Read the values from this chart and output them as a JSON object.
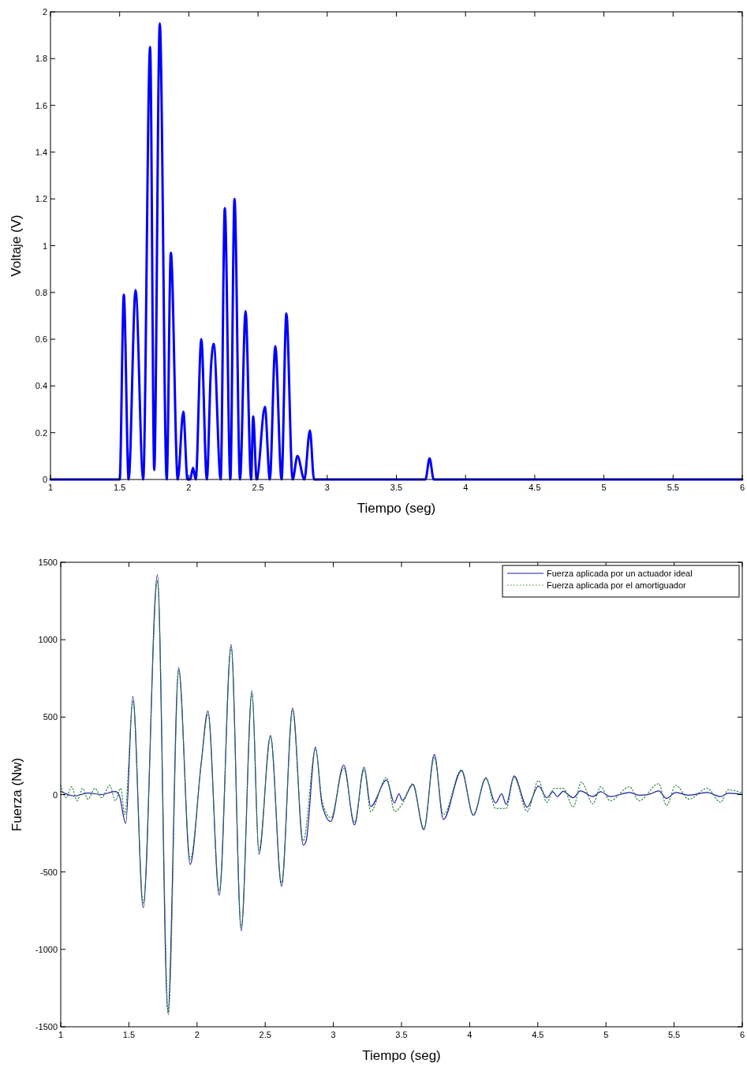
{
  "chart_data": [
    {
      "type": "line",
      "xlabel": "Tiempo (seg)",
      "ylabel": "Voltaje (V)",
      "xlim": [
        1,
        6
      ],
      "xticks": [
        1,
        1.5,
        2,
        2.5,
        3,
        3.5,
        4,
        4.5,
        5,
        5.5,
        6
      ],
      "ylim": [
        0,
        2
      ],
      "yticks": [
        0,
        0.2,
        0.4,
        0.6,
        0.8,
        1,
        1.2,
        1.4,
        1.6,
        1.8,
        2
      ],
      "grid": false,
      "legend": false,
      "line_style": "solid",
      "series": [
        {
          "color": "#0000ff",
          "x": [
            1,
            1.5,
            1.53,
            1.565,
            1.615,
            1.67,
            1.72,
            1.75,
            1.79,
            1.84,
            1.87,
            1.92,
            1.96,
            1.99,
            2.01,
            2.03,
            2.05,
            2.09,
            2.13,
            2.16,
            2.18,
            2.23,
            2.26,
            2.3,
            2.33,
            2.37,
            2.41,
            2.45,
            2.465,
            2.49,
            2.55,
            2.585,
            2.625,
            2.67,
            2.705,
            2.75,
            2.785,
            2.835,
            2.875,
            2.905,
            3.71,
            3.74,
            3.77,
            6
          ],
          "values": [
            0,
            0,
            0.79,
            0,
            0.81,
            0,
            1.85,
            0.04,
            1.95,
            0,
            0.97,
            0,
            0.29,
            0,
            0,
            0.05,
            0,
            0.6,
            0,
            0.48,
            0.58,
            0,
            1.16,
            0,
            1.2,
            0,
            0.72,
            0,
            0.27,
            0,
            0.31,
            0,
            0.57,
            0,
            0.71,
            0,
            0.1,
            0,
            0.21,
            0,
            0,
            0.09,
            0,
            0
          ]
        }
      ]
    },
    {
      "type": "line",
      "xlabel": "Tiempo (seg)",
      "ylabel": "Fuerza (Nw)",
      "xlim": [
        1,
        6
      ],
      "xticks": [
        1,
        1.5,
        2,
        2.5,
        3,
        3.5,
        4,
        4.5,
        5,
        5.5,
        6
      ],
      "ylim": [
        -1500,
        1500
      ],
      "yticks": [
        -1500,
        -1000,
        -500,
        0,
        500,
        1000,
        1500
      ],
      "grid": false,
      "legend": "top right",
      "series": [
        {
          "name": "Fuerza aplicada por un actuador ideal",
          "color": "#1a1aa0",
          "line_style": "solid",
          "x": [
            1,
            1.1,
            1.2,
            1.3,
            1.4,
            1.43,
            1.477,
            1.529,
            1.605,
            1.709,
            1.786,
            1.865,
            1.95,
            2.03,
            2.08,
            2.163,
            2.25,
            2.324,
            2.403,
            2.454,
            2.539,
            2.62,
            2.701,
            2.779,
            2.8,
            2.869,
            2.918,
            2.981,
            3.076,
            3.155,
            3.226,
            3.274,
            3.39,
            3.448,
            3.481,
            3.506,
            3.583,
            3.664,
            3.741,
            3.807,
            3.94,
            4.027,
            4.119,
            4.19,
            4.235,
            4.268,
            4.326,
            4.422,
            4.505,
            4.567,
            4.609,
            4.644,
            4.686,
            4.76,
            4.813,
            4.904,
            4.962,
            5.03,
            5.174,
            5.242,
            5.319,
            5.387,
            5.444,
            5.512,
            5.608,
            5.743,
            5.84,
            5.897,
            6
          ],
          "values": [
            20,
            -10,
            10,
            0,
            20,
            -8,
            -186,
            634,
            -731,
            1419,
            -1409,
            818,
            -451,
            199,
            540,
            -650,
            968,
            -881,
            670,
            -385,
            381,
            -593,
            558,
            -327,
            -300,
            306,
            -69,
            -174,
            191,
            -196,
            177,
            -77,
            94,
            -54,
            4,
            -38,
            64,
            -228,
            259,
            -161,
            155,
            -135,
            105,
            -55,
            4,
            -64,
            120,
            -81,
            55,
            -21,
            18,
            -13,
            21,
            -21,
            24,
            -13,
            18,
            -13,
            13,
            -4,
            2,
            24,
            -25,
            13,
            -4,
            13,
            -13,
            8,
            1
          ]
        },
        {
          "name": "Fuerza aplicada por el amortiguador",
          "color": "#2e8b3e",
          "line_style": "dotted",
          "x": [
            1,
            1.04,
            1.08,
            1.12,
            1.16,
            1.2,
            1.25,
            1.3,
            1.36,
            1.4,
            1.44,
            1.47,
            1.53,
            1.605,
            1.709,
            1.79,
            1.865,
            1.95,
            2.03,
            2.08,
            2.163,
            2.25,
            2.324,
            2.403,
            2.454,
            2.539,
            2.62,
            2.701,
            2.779,
            2.869,
            2.918,
            2.981,
            3.076,
            3.155,
            3.226,
            3.274,
            3.39,
            3.45,
            3.506,
            3.583,
            3.664,
            3.741,
            3.807,
            3.94,
            4.027,
            4.119,
            4.19,
            4.268,
            4.326,
            4.422,
            4.505,
            4.567,
            4.62,
            4.686,
            4.76,
            4.82,
            4.904,
            4.962,
            5.03,
            5.174,
            5.242,
            5.387,
            5.444,
            5.512,
            5.608,
            5.743,
            5.84,
            5.897,
            6
          ],
          "values": [
            60,
            -20,
            50,
            -40,
            40,
            -30,
            40,
            -20,
            60,
            -40,
            40,
            -130,
            600,
            -700,
            1380,
            -1420,
            800,
            -420,
            190,
            520,
            -620,
            950,
            -860,
            650,
            -360,
            370,
            -570,
            540,
            -300,
            290,
            -40,
            -150,
            170,
            -180,
            160,
            -110,
            110,
            -110,
            -60,
            70,
            -220,
            240,
            -130,
            160,
            -130,
            110,
            -90,
            -90,
            110,
            -110,
            90,
            -50,
            40,
            40,
            -80,
            80,
            -60,
            50,
            -40,
            50,
            -40,
            70,
            -70,
            60,
            -30,
            40,
            -50,
            30,
            10
          ]
        }
      ]
    }
  ]
}
